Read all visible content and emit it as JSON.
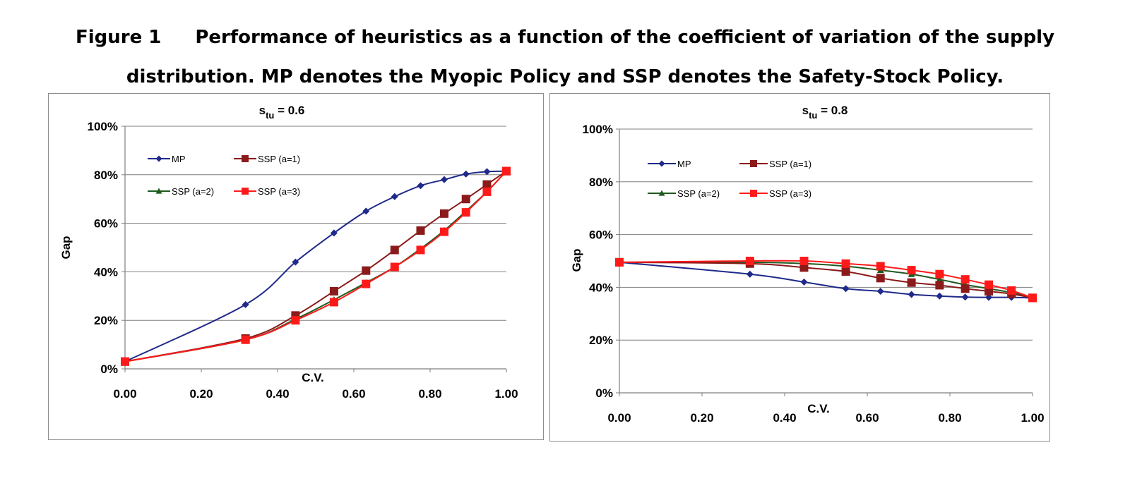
{
  "figure": {
    "label": "Figure 1",
    "caption_line1": "Performance of heuristics as a function of the coefficient of variation of the supply",
    "caption_line2": "distribution. MP denotes the Myopic Policy and SSP denotes the Safety-Stock Policy."
  },
  "chart_data": [
    {
      "type": "line",
      "title_main": "s",
      "title_sub": "tu",
      "title_rest": " = 0.6",
      "xlabel": "C.V.",
      "ylabel": "Gap",
      "xlim": [
        0,
        1
      ],
      "ylim": [
        0,
        100
      ],
      "x_ticks": [
        "0.00",
        "0.20",
        "0.40",
        "0.60",
        "0.80",
        "1.00"
      ],
      "y_ticks": [
        "0%",
        "20%",
        "40%",
        "60%",
        "80%",
        "100%"
      ],
      "grid": true,
      "legend_placement": "upper-left",
      "x": [
        0.0,
        0.316,
        0.447,
        0.548,
        0.632,
        0.707,
        0.775,
        0.837,
        0.894,
        0.949,
        1.0
      ],
      "series": [
        {
          "name": "MP",
          "marker": "diamond",
          "color": "#1f2a8a",
          "values": [
            3,
            26.5,
            44,
            56,
            65,
            71,
            75.5,
            78,
            80.3,
            81.3,
            81.5
          ]
        },
        {
          "name": "SSP (a=1)",
          "marker": "square",
          "color": "#8b1a1a",
          "values": [
            3,
            12.5,
            22,
            32,
            40.5,
            49,
            57,
            64,
            70,
            76,
            81.5
          ]
        },
        {
          "name": "SSP (a=2)",
          "marker": "triangle",
          "color": "#1e5a1e",
          "values": [
            3,
            12,
            20.5,
            28.5,
            35.5,
            42,
            49.5,
            57,
            65,
            73,
            81.5
          ]
        },
        {
          "name": "SSP (a=3)",
          "marker": "square",
          "color": "#ff1a1a",
          "values": [
            3,
            12,
            20,
            27.5,
            35,
            42,
            49,
            56.5,
            64.5,
            73,
            81.5
          ]
        }
      ]
    },
    {
      "type": "line",
      "title_main": "s",
      "title_sub": "tu",
      "title_rest": " = 0.8",
      "xlabel": "C.V.",
      "ylabel": "Gap",
      "xlim": [
        0,
        1
      ],
      "ylim": [
        0,
        100
      ],
      "x_ticks": [
        "0.00",
        "0.20",
        "0.40",
        "0.60",
        "0.80",
        "1.00"
      ],
      "y_ticks": [
        "0%",
        "20%",
        "40%",
        "60%",
        "80%",
        "100%"
      ],
      "grid": true,
      "legend_placement": "upper-left",
      "x": [
        0.0,
        0.316,
        0.447,
        0.548,
        0.632,
        0.707,
        0.775,
        0.837,
        0.894,
        0.949,
        1.0
      ],
      "series": [
        {
          "name": "MP",
          "marker": "diamond",
          "color": "#1f2a8a",
          "values": [
            49.5,
            45,
            42,
            39.5,
            38.5,
            37.3,
            36.7,
            36.3,
            36.2,
            36.2,
            36
          ]
        },
        {
          "name": "SSP (a=1)",
          "marker": "square",
          "color": "#8b1a1a",
          "values": [
            49.5,
            49,
            47.5,
            46,
            43.5,
            41.8,
            40.8,
            39.5,
            38.5,
            37.5,
            36
          ]
        },
        {
          "name": "SSP (a=2)",
          "marker": "triangle",
          "color": "#1e5a1e",
          "values": [
            49.5,
            49.5,
            49,
            48,
            46.5,
            45,
            43,
            41,
            39.5,
            38,
            36
          ]
        },
        {
          "name": "SSP (a=3)",
          "marker": "square",
          "color": "#ff1a1a",
          "values": [
            49.5,
            50,
            50,
            49,
            48,
            46.5,
            45,
            43,
            41,
            38.8,
            36
          ]
        }
      ]
    }
  ]
}
